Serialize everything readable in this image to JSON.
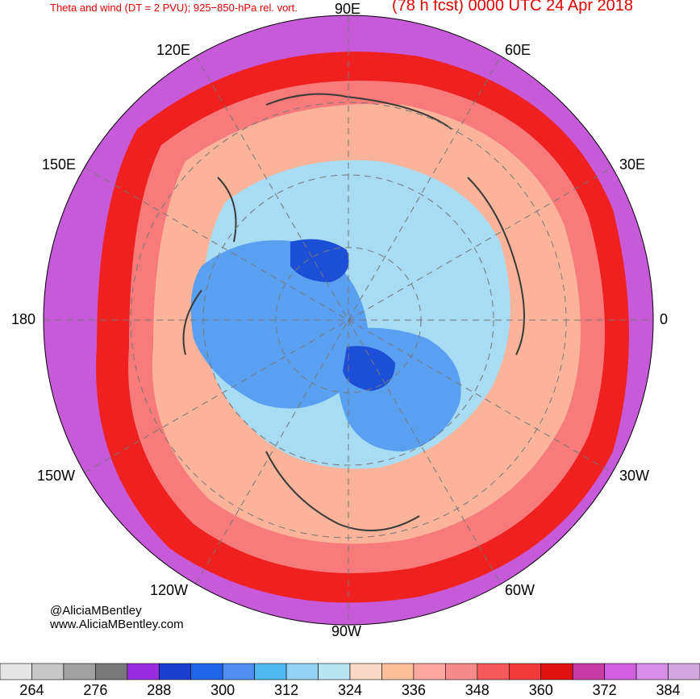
{
  "header": {
    "title_left": "Theta and wind (DT = 2 PVU); 925−850-hPa rel. vort.",
    "title_right": "(78 h fcst) 0000 UTC 24 Apr 2018"
  },
  "longitude_labels": {
    "lon_90e": "90E",
    "lon_120e": "120E",
    "lon_60e": "60E",
    "lon_150e": "150E",
    "lon_30e": "30E",
    "lon_180": "180",
    "lon_0": "0",
    "lon_150w": "150W",
    "lon_30w": "30W",
    "lon_120w": "120W",
    "lon_60w": "60W",
    "lon_90w": "90W"
  },
  "credits": {
    "handle": "@AliciaMBentley",
    "website": "www.AliciaMBentley.com"
  },
  "colorbar": {
    "colors": [
      "#e6e6e6",
      "#c8c8c8",
      "#a0a0a0",
      "#787878",
      "#9a2be0",
      "#1a3fcc",
      "#1f66e8",
      "#4f8df0",
      "#4fb8f0",
      "#96d2f5",
      "#b8e6f2",
      "#fad8c8",
      "#fbbf9a",
      "#fca7a0",
      "#f78a8a",
      "#f45a5a",
      "#f23b3b",
      "#e01212",
      "#c83ca6",
      "#d25fe0",
      "#d88ee8",
      "#d4a6e0"
    ],
    "tick_labels": [
      "264",
      "276",
      "288",
      "300",
      "312",
      "324",
      "336",
      "348",
      "360",
      "372",
      "384"
    ]
  },
  "legend_colors": {
    "ocean_outer": "#c75ad8",
    "hot_band": "#ee2020",
    "warm": "#fbb49a",
    "cold": "#5aa0f0",
    "coldest": "#1d4fd6"
  }
}
